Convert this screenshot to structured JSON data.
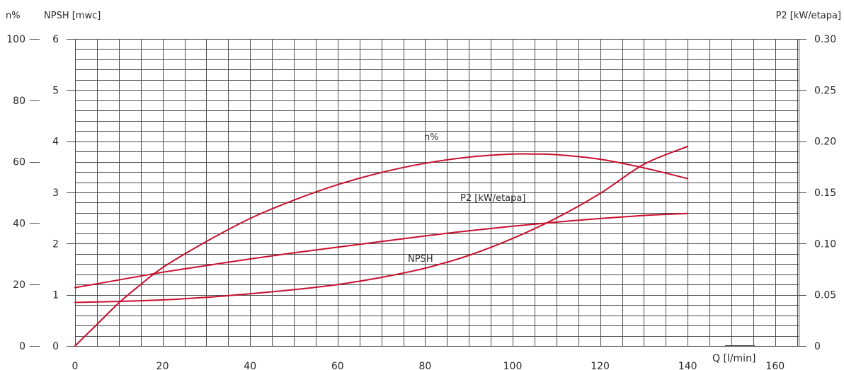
{
  "chart_data": {
    "type": "line",
    "title": "",
    "headers": {
      "eta_axis": "n%",
      "npsh_axis": "NPSH [mwc]",
      "power_axis": "P2 [kW/etapa]",
      "x_axis": "Q [l/min]"
    },
    "grid": true,
    "xlim": [
      0,
      140
    ],
    "x_ticks": [
      0,
      20,
      40,
      60,
      80,
      100,
      120,
      140,
      160
    ],
    "x_tick_labels": [
      "0",
      "20",
      "40",
      "60",
      "80",
      "100",
      "120",
      "140",
      "160"
    ],
    "eta_axis": {
      "range": [
        0,
        100
      ],
      "ticks": [
        "100",
        "80",
        "60",
        "40",
        "20",
        "0"
      ]
    },
    "npsh_axis": {
      "range": [
        0,
        6
      ],
      "ticks": [
        "6",
        "5",
        "4",
        "3",
        "2",
        "1",
        "0"
      ]
    },
    "power_axis": {
      "range": [
        0,
        0.3
      ],
      "ticks": [
        "0.30",
        "0.25",
        "0.20",
        "0.15",
        "0.10",
        "0.05",
        "0"
      ]
    },
    "curve_color": "#c8102e",
    "series": [
      {
        "name": "n%",
        "axis": "eta",
        "x": [
          0,
          5,
          10,
          15,
          20,
          30,
          40,
          50,
          60,
          70,
          80,
          90,
          100,
          105,
          110,
          120,
          130,
          140
        ],
        "y": [
          0,
          7,
          14,
          20,
          25.5,
          34,
          41.5,
          47.5,
          52.5,
          56.5,
          59.5,
          61.5,
          62.5,
          62.5,
          62.3,
          60.8,
          58,
          54.5
        ]
      },
      {
        "name": "P2 [kW/etapa]",
        "axis": "power",
        "x": [
          0,
          10,
          20,
          30,
          40,
          50,
          60,
          70,
          80,
          90,
          100,
          110,
          120,
          130,
          140
        ],
        "y": [
          0.057,
          0.0645,
          0.072,
          0.0785,
          0.085,
          0.091,
          0.0965,
          0.102,
          0.1075,
          0.1125,
          0.117,
          0.121,
          0.1245,
          0.1275,
          0.1295
        ]
      },
      {
        "name": "NPSH",
        "axis": "npsh",
        "x": [
          0,
          10,
          20,
          30,
          40,
          50,
          60,
          70,
          80,
          90,
          100,
          110,
          120,
          130,
          140
        ],
        "y": [
          0.85,
          0.87,
          0.9,
          0.95,
          1.02,
          1.1,
          1.2,
          1.34,
          1.52,
          1.77,
          2.1,
          2.5,
          2.98,
          3.55,
          3.9
        ]
      }
    ],
    "curve_labels": [
      "n%",
      "P2 [kW/etapa]",
      "NPSH"
    ]
  }
}
